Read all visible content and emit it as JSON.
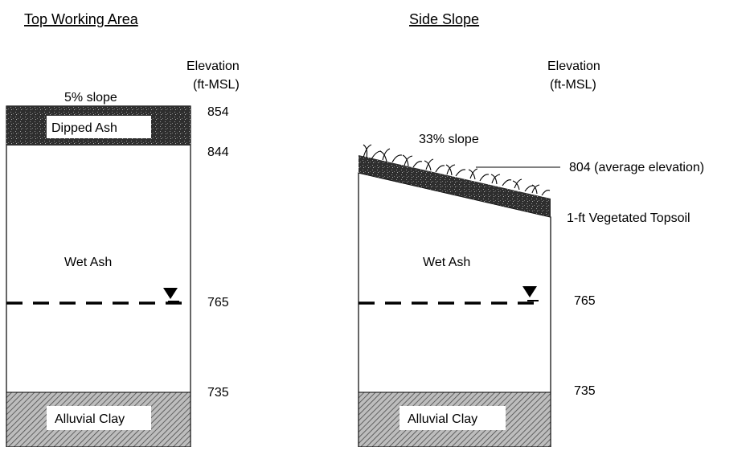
{
  "left_panel": {
    "title": "Top Working Area",
    "elevation_header_line1": "Elevation",
    "elevation_header_line2": "(ft-MSL)",
    "slope_label": "5% slope",
    "top_layer_label": "Dipped Ash",
    "middle_layer_label": "Wet Ash",
    "bottom_layer_label": "Alluvial Clay",
    "elevations": [
      "854",
      "844",
      "765",
      "735"
    ]
  },
  "right_panel": {
    "title": "Side Slope",
    "elevation_header_line1": "Elevation",
    "elevation_header_line2": "(ft-MSL)",
    "slope_label": "33% slope",
    "top_elevation_label": "804 (average elevation)",
    "topsoil_label": "1-ft Vegetated Topsoil",
    "middle_layer_label": "Wet Ash",
    "bottom_layer_label": "Alluvial Clay",
    "elevations": [
      "765",
      "735"
    ]
  },
  "icons": {
    "water_table": "water-table-triangle-icon",
    "vegetation": "grass-icon"
  },
  "colors": {
    "dipped_ash": "#3a3a3a",
    "topsoil": "#3a3a3a",
    "clay_hatch": "#555555",
    "outline": "#000000"
  }
}
